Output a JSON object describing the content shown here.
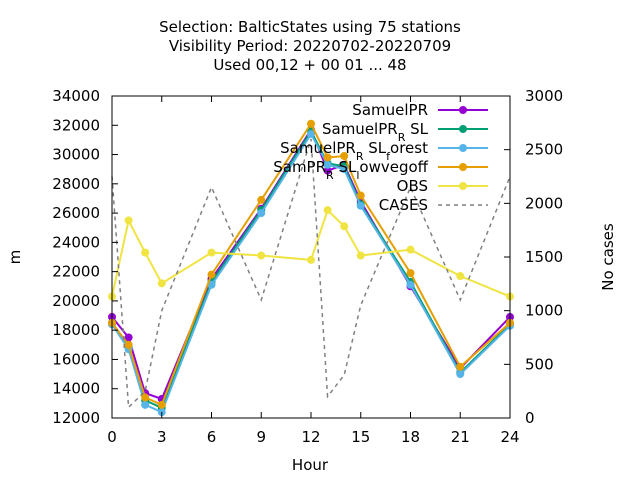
{
  "chart_data": {
    "type": "line",
    "title": [
      "Selection: BalticStates using    75 stations",
      "Visibility   Period: 20220702-20220709",
      "Used  00,12  + 00 01 ... 48"
    ],
    "xlabel": "Hour",
    "ylabel": "m",
    "y2label": "No cases",
    "xlim": [
      0,
      24
    ],
    "ylim": [
      12000,
      34000
    ],
    "y2lim": [
      0,
      3000
    ],
    "xticks": [
      "0",
      "3",
      "6",
      "9",
      "12",
      "15",
      "18",
      "21",
      "24"
    ],
    "yticks": [
      "12000",
      "14000",
      "16000",
      "18000",
      "20000",
      "22000",
      "24000",
      "26000",
      "28000",
      "30000",
      "32000",
      "34000"
    ],
    "y2ticks": [
      "0",
      "500",
      "1000",
      "1500",
      "2000",
      "2500",
      "3000"
    ],
    "legend_position": "top-right",
    "series": [
      {
        "name": "SamuelPR",
        "color": "#9400d3",
        "style": "line-points",
        "axis": "y",
        "x": [
          0,
          1,
          2,
          3,
          6,
          9,
          12,
          13,
          14,
          15,
          18,
          21,
          24
        ],
        "y": [
          18900,
          17500,
          13700,
          13300,
          21500,
          26300,
          31700,
          28900,
          29300,
          26800,
          21000,
          15400,
          18900
        ]
      },
      {
        "name": "SamuelPR_R SL",
        "color": "#009e73",
        "style": "line-points",
        "axis": "y",
        "x": [
          0,
          1,
          2,
          3,
          6,
          9,
          12,
          13,
          14,
          15,
          18,
          21,
          24
        ],
        "y": [
          18500,
          16900,
          13200,
          12700,
          21300,
          26200,
          31600,
          29400,
          29200,
          26600,
          21300,
          15100,
          18400
        ]
      },
      {
        "name": "SamuelPR_R SL_forest",
        "color": "#56b4e9",
        "style": "line-points",
        "axis": "y",
        "x": [
          0,
          1,
          2,
          3,
          6,
          9,
          12,
          13,
          14,
          15,
          18,
          21,
          24
        ],
        "y": [
          18400,
          16700,
          12900,
          12400,
          21100,
          26000,
          31400,
          29300,
          29000,
          26500,
          21100,
          15000,
          18300
        ]
      },
      {
        "name": "SamPR_R SL_lowvegoff",
        "color": "#e69f00",
        "style": "line-points",
        "axis": "y",
        "x": [
          0,
          1,
          2,
          3,
          6,
          9,
          12,
          13,
          14,
          15,
          18,
          21,
          24
        ],
        "y": [
          18500,
          17000,
          13400,
          12900,
          21800,
          26900,
          32100,
          29800,
          29900,
          27200,
          21900,
          15500,
          18500
        ]
      },
      {
        "name": "OBS",
        "color": "#f0e442",
        "style": "line-points",
        "axis": "y",
        "x": [
          0,
          1,
          2,
          3,
          6,
          9,
          12,
          13,
          14,
          15,
          18,
          21,
          24
        ],
        "y": [
          20300,
          25500,
          23300,
          21200,
          23300,
          23100,
          22800,
          26200,
          25100,
          23100,
          23500,
          21700,
          20300
        ]
      },
      {
        "name": "CASES",
        "color": "#808080",
        "style": "dashed",
        "axis": "y2",
        "x": [
          0,
          1,
          2,
          3,
          6,
          9,
          12,
          13,
          14,
          15,
          18,
          21,
          24
        ],
        "y": [
          2250,
          100,
          250,
          1000,
          2150,
          1100,
          2600,
          200,
          400,
          1050,
          2150,
          1100,
          2250
        ]
      }
    ]
  }
}
